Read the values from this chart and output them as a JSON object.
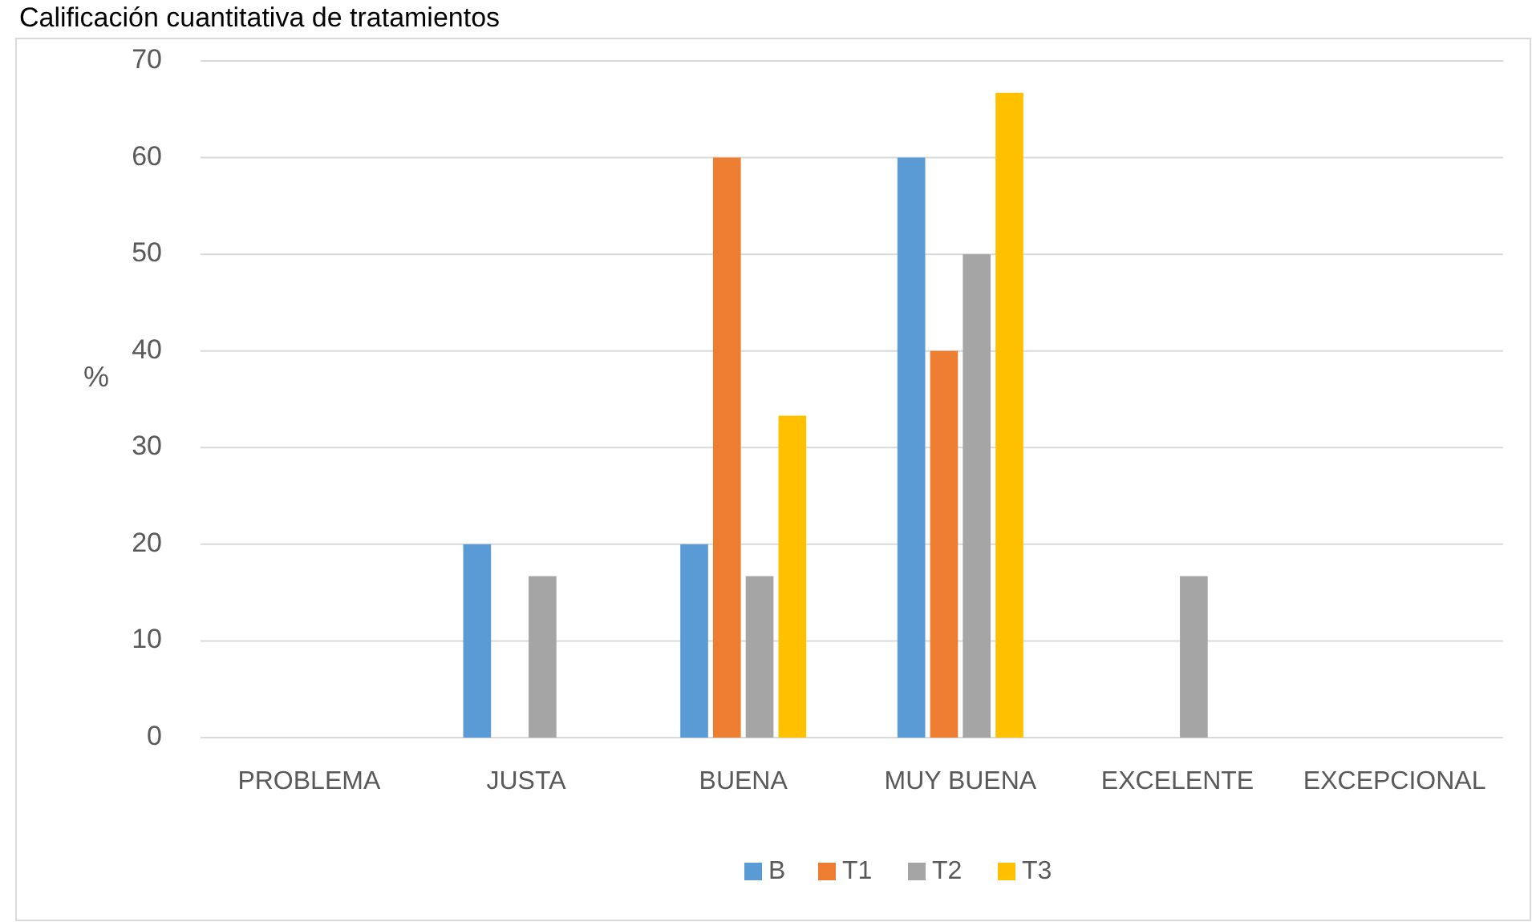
{
  "chart_data": {
    "type": "bar",
    "title": "Calificación cuantitativa de tratamientos",
    "ylabel": "%",
    "categories": [
      "PROBLEMA",
      "JUSTA",
      "BUENA",
      "MUY BUENA",
      "EXCELENTE",
      "EXCEPCIONAL"
    ],
    "series": [
      {
        "name": "B",
        "color": "#5b9bd5",
        "values": [
          0,
          20,
          20,
          60,
          0,
          0
        ]
      },
      {
        "name": "T1",
        "color": "#ed7d31",
        "values": [
          0,
          0,
          60,
          40,
          0,
          0
        ]
      },
      {
        "name": "T2",
        "color": "#a5a5a5",
        "values": [
          0,
          16.7,
          16.7,
          50,
          16.7,
          0
        ]
      },
      {
        "name": "T3",
        "color": "#ffc000",
        "values": [
          0,
          0,
          33.3,
          66.7,
          0,
          0
        ]
      }
    ],
    "ylim": [
      0,
      70
    ],
    "yticks": [
      0,
      10,
      20,
      30,
      40,
      50,
      60,
      70
    ],
    "grid": "y",
    "legend": "bottom"
  }
}
